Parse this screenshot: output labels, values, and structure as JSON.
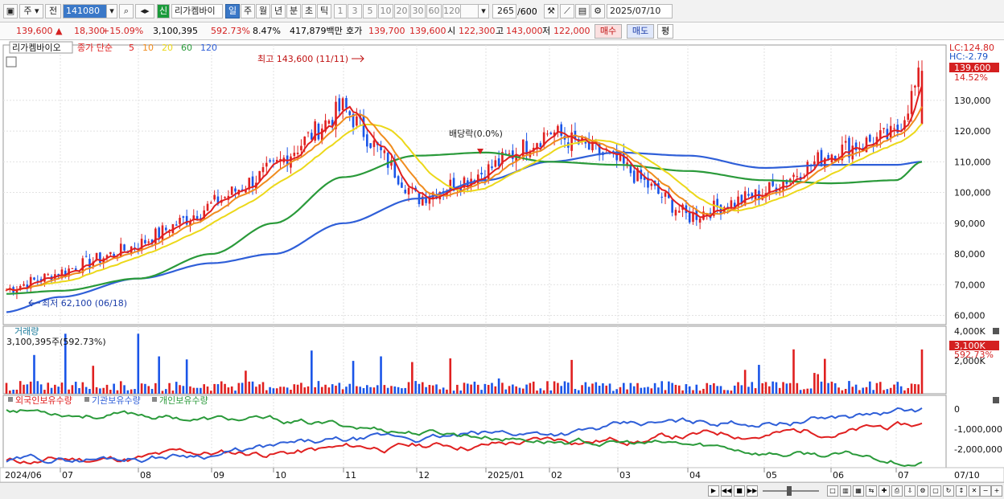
{
  "toolbar": {
    "market": "주",
    "type": "전",
    "code": "141080",
    "badge": "신",
    "name": "리가켐바이",
    "periods": [
      "일",
      "주",
      "월",
      "년",
      "분",
      "초",
      "틱"
    ],
    "active_period": "일",
    "nums": [
      "1",
      "3",
      "5",
      "10",
      "20",
      "30",
      "60",
      "120"
    ],
    "count": "265",
    "count_total": "/600",
    "date": "2025/07/10"
  },
  "quote": {
    "price": "139,600",
    "change": "18,300",
    "change_pct": "+15.09%",
    "volume": "3,100,395",
    "volume_pct": "592.73%",
    "turnover": "8.47%",
    "amount": "417,879백만",
    "bid_label": "호가",
    "bid1": "139,700",
    "bid2": "139,600",
    "open_label": "시",
    "open": "122,300",
    "high_label": "고",
    "high": "143,000",
    "low_label": "저",
    "low": "122,000",
    "buy": "매수",
    "sell": "매도",
    "eval": "평"
  },
  "price_panel": {
    "stock_label": "리가켐바이오",
    "legend_prefix": "종가 단순",
    "ma_legend": [
      {
        "label": "5",
        "color": "#e02020"
      },
      {
        "label": "10",
        "color": "#f08c1e"
      },
      {
        "label": "20",
        "color": "#ecd81a"
      },
      {
        "label": "60",
        "color": "#2a9a3a"
      },
      {
        "label": "120",
        "color": "#2f5fd8"
      }
    ],
    "lc_label": "LC:124.80",
    "hc_label": "HC:-2.79",
    "last_price": "139,600",
    "last_pct": "14.52%",
    "max_note": "최고 143,600 (11/11)",
    "min_note": "최저 62,100 (06/18)",
    "dividend_note": "배당락(0.0%)"
  },
  "volume_panel": {
    "title": "거래량",
    "current": "3,100,395주(592.73%)",
    "last_label": "3,100K",
    "last_pct": "592.73%"
  },
  "holdings_panel": {
    "legend": [
      {
        "label": "외국인보유수량",
        "color": "#e02020"
      },
      {
        "label": "기관보유수량",
        "color": "#2f5fd8"
      },
      {
        "label": "개인보유수량",
        "color": "#2a9a3a"
      }
    ]
  },
  "x_axis_labels": [
    "2024/06",
    "07",
    "08",
    "09",
    "10",
    "11",
    "12",
    "2025/01",
    "02",
    "03",
    "04",
    "05",
    "06",
    "07"
  ],
  "x_axis_right_label": "07/10",
  "chart_data": [
    {
      "type": "candlestick",
      "ylim": [
        57000,
        148000
      ],
      "yticks": [
        60000,
        70000,
        80000,
        90000,
        100000,
        110000,
        120000,
        130000
      ],
      "ytick_labels": [
        "60,000",
        "70,000",
        "80,000",
        "90,000",
        "100,000",
        "110,000",
        "120,000",
        "130,000"
      ],
      "x": [
        "2024/06",
        "07",
        "08",
        "09",
        "10",
        "11",
        "12",
        "2025/01",
        "02",
        "03",
        "04",
        "05",
        "06",
        "07",
        "07/10"
      ],
      "close_approx": [
        68000,
        74000,
        83000,
        96000,
        108000,
        128000,
        98000,
        107000,
        120000,
        110000,
        92000,
        100000,
        113000,
        119000,
        139600
      ],
      "ma120_approx": [
        61000,
        66000,
        72000,
        77000,
        80000,
        90000,
        98000,
        104000,
        110000,
        113000,
        112000,
        108000,
        109000,
        109000,
        110000
      ],
      "ma60_approx": [
        67000,
        68000,
        72000,
        80000,
        90000,
        105000,
        112000,
        113000,
        110000,
        109000,
        107000,
        104000,
        103000,
        104000,
        110000
      ]
    },
    {
      "type": "bar",
      "series_name": "거래량",
      "ylim": [
        0,
        4500
      ],
      "ytick_labels": [
        "4,000K",
        "2,000K"
      ],
      "last_value_k": 3100
    },
    {
      "type": "line",
      "ytick_labels": [
        "0",
        "-1,000,000",
        "-2,000,000"
      ],
      "series": [
        {
          "name": "외국인보유수량",
          "color": "#e02020"
        },
        {
          "name": "기관보유수량",
          "color": "#2f5fd8"
        },
        {
          "name": "개인보유수량",
          "color": "#2a9a3a"
        }
      ]
    }
  ]
}
